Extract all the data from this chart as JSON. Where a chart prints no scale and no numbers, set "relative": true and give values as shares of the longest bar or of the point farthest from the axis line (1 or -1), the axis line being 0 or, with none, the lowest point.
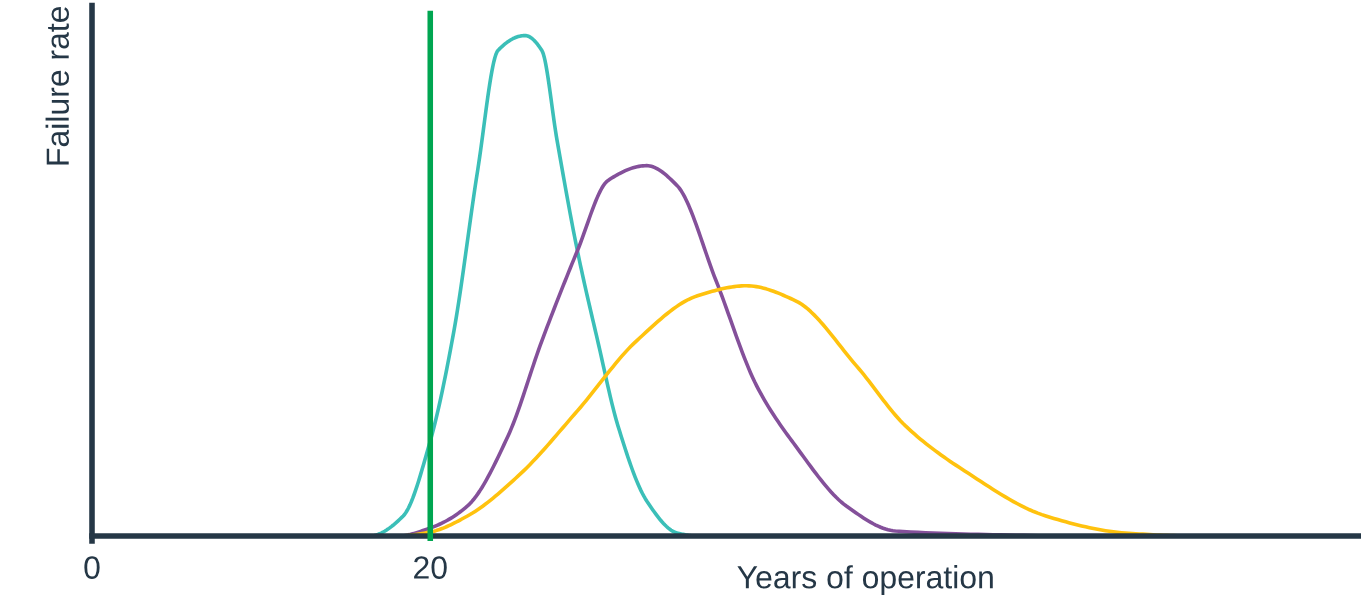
{
  "chart_data": {
    "type": "line",
    "relative": true,
    "xlabel": "Years of operation",
    "ylabel": "Failure rate",
    "xlim": [
      0,
      75
    ],
    "xticks": [
      0,
      20
    ],
    "tick_labels": "x",
    "grid": false,
    "marker": "none",
    "line_style": "solid",
    "series": [
      {
        "color": "#3bbfb8",
        "x": [
          11.3,
          16.4,
          18.4,
          20,
          21.4,
          22.8,
          24,
          25.6,
          26.6,
          27.5,
          28.7,
          29.9,
          31.1,
          32.8,
          34.6,
          35.8,
          39.9
        ],
        "values": [
          0,
          0,
          0.04,
          0.19,
          0.41,
          0.73,
          0.97,
          1,
          0.97,
          0.79,
          0.57,
          0.39,
          0.22,
          0.07,
          0.006,
          0,
          0
        ]
      },
      {
        "color": "#84509a",
        "x": [
          9.2,
          18.1,
          20,
          22.2,
          24.6,
          26.6,
          28.7,
          30.5,
          32.8,
          34.6,
          36.9,
          39.3,
          41.6,
          44.6,
          47.5,
          56.4
        ],
        "values": [
          0,
          0,
          0.016,
          0.06,
          0.2,
          0.39,
          0.57,
          0.71,
          0.74,
          0.7,
          0.51,
          0.3,
          0.18,
          0.06,
          0.01,
          0
        ]
      },
      {
        "color": "#ffc20e",
        "x": [
          9.2,
          18.1,
          20,
          22.2,
          25.2,
          28.7,
          32.2,
          35.8,
          38.7,
          41.6,
          45.2,
          48.1,
          51.6,
          56.4,
          61.1,
          65.2,
          74.6
        ],
        "values": [
          0,
          0,
          0.008,
          0.04,
          0.12,
          0.25,
          0.39,
          0.48,
          0.5,
          0.47,
          0.34,
          0.22,
          0.13,
          0.04,
          0.006,
          0,
          0
        ]
      }
    ],
    "ref_lines": [
      {
        "axis": "x",
        "value": 20,
        "label": null,
        "color": "#00a651"
      }
    ]
  }
}
